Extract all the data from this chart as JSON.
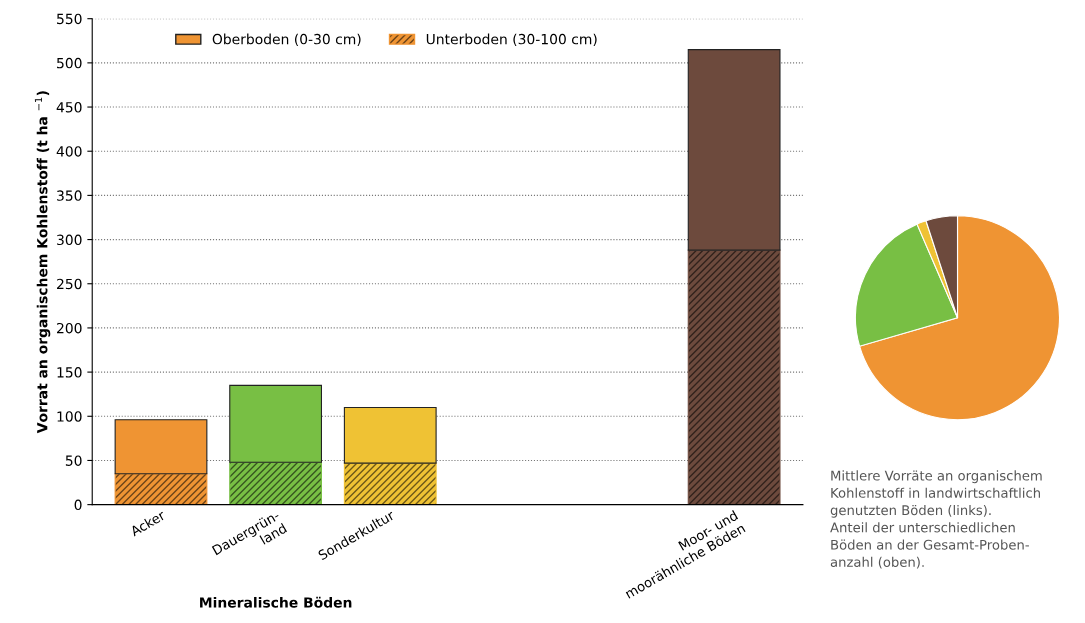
{
  "chart_data": [
    {
      "type": "bar",
      "stacked": true,
      "ylabel": "Vorrat an organischem Kohlenstoff (t ha $^{−1}$)",
      "xlabel": "Mineralische Böden",
      "categories": [
        "Acker",
        "Dauergrün-\nland",
        "Sonderkultur",
        null,
        null,
        "Moor- und\nmoorähnliche Böden"
      ],
      "series": [
        {
          "name": "Unterboden (30-100 cm)",
          "colors": [
            "#ef9433",
            "#78bf44",
            "#efc234",
            null,
            null,
            "#6d4a3d"
          ],
          "values": [
            35,
            48,
            47,
            null,
            null,
            288
          ]
        },
        {
          "name": "Oberboden (0-30 cm)",
          "colors": [
            "#ef9433",
            "#78bf44",
            "#efc234",
            null,
            null,
            "#6d4a3d"
          ],
          "values": [
            61,
            87,
            63,
            null,
            null,
            227
          ]
        }
      ],
      "ylim": [
        0,
        550
      ],
      "yticks": [
        0,
        50,
        100,
        150,
        200,
        250,
        300,
        350,
        400,
        450,
        500,
        550
      ],
      "grid": "y",
      "legend": "top left"
    },
    {
      "type": "pie",
      "categories": [
        null,
        null,
        null,
        null
      ],
      "values": [
        70.5,
        23,
        1.5,
        5
      ],
      "colors": [
        "#ef9433",
        "#78bf44",
        "#efc234",
        "#6d4a3d"
      ],
      "annotations": [
        "Mittlere Vorräte an organischem\nKohlenstoff in landwirtschaftlich\ngenutzten Böden (links).\nAnteil der unterschiedlichen\nBöden an der Gesamt-Proben-\nanzahl (oben)."
      ]
    }
  ]
}
